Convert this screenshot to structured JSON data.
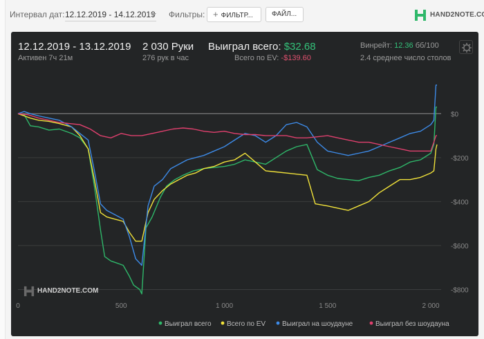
{
  "topbar": {
    "interval_label": "Интервал дат:",
    "date_range": "12.12.2019 - 14.12.2019",
    "filters_label": "Фильтры:",
    "filter_button": "ФИЛЬТР...",
    "file_button": "ФАЙЛ...",
    "logo_text": "HAND2NOTE.COM"
  },
  "summary": {
    "date_range": "12.12.2019 - 13.12.2019",
    "active": "Активен 7ч 21м",
    "hands": "2 030 Руки",
    "hands_per_hour": "276 рук в час",
    "won_label": "Выиграл всего:",
    "won_value": "$32.68",
    "ev_label": "Всего по EV:",
    "ev_value": "-$139.60",
    "winrate_label": "Винрейт:",
    "winrate_value": "12.36",
    "winrate_unit": "бб/100",
    "avg_tables": "2.4 среднее число столов"
  },
  "watermark": "HAND2NOTE.COM",
  "colors": {
    "won": "#2fb86a",
    "ev": "#f2e33a",
    "showdown": "#3d8be8",
    "non_showdown": "#e0406e"
  },
  "chart_data": {
    "type": "line",
    "x_ticks": [
      "0",
      "500",
      "1 000",
      "1 500",
      "2 000"
    ],
    "y_ticks": [
      "$0",
      "-$200",
      "-$400",
      "-$600",
      "-$800"
    ],
    "xlim": [
      0,
      2030
    ],
    "ylim": [
      -830,
      130
    ],
    "series": [
      {
        "name": "Выиграл всего",
        "color": "#2fb86a",
        "points": [
          [
            0,
            0
          ],
          [
            30,
            -5
          ],
          [
            60,
            -55
          ],
          [
            100,
            -60
          ],
          [
            150,
            -75
          ],
          [
            200,
            -70
          ],
          [
            260,
            -90
          ],
          [
            300,
            -110
          ],
          [
            340,
            -160
          ],
          [
            370,
            -330
          ],
          [
            400,
            -530
          ],
          [
            420,
            -650
          ],
          [
            450,
            -670
          ],
          [
            480,
            -680
          ],
          [
            510,
            -690
          ],
          [
            540,
            -740
          ],
          [
            560,
            -780
          ],
          [
            590,
            -800
          ],
          [
            600,
            -820
          ],
          [
            620,
            -520
          ],
          [
            650,
            -470
          ],
          [
            690,
            -380
          ],
          [
            720,
            -330
          ],
          [
            760,
            -300
          ],
          [
            800,
            -280
          ],
          [
            850,
            -260
          ],
          [
            900,
            -250
          ],
          [
            950,
            -245
          ],
          [
            1000,
            -240
          ],
          [
            1050,
            -230
          ],
          [
            1100,
            -210
          ],
          [
            1150,
            -220
          ],
          [
            1200,
            -230
          ],
          [
            1250,
            -200
          ],
          [
            1300,
            -170
          ],
          [
            1350,
            -150
          ],
          [
            1400,
            -140
          ],
          [
            1450,
            -255
          ],
          [
            1500,
            -280
          ],
          [
            1550,
            -295
          ],
          [
            1600,
            -300
          ],
          [
            1650,
            -305
          ],
          [
            1700,
            -290
          ],
          [
            1750,
            -280
          ],
          [
            1800,
            -260
          ],
          [
            1850,
            -245
          ],
          [
            1900,
            -220
          ],
          [
            1950,
            -210
          ],
          [
            2000,
            -180
          ],
          [
            2015,
            -140
          ],
          [
            2025,
            30
          ],
          [
            2030,
            30
          ]
        ]
      },
      {
        "name": "Всего по EV",
        "color": "#f2e33a",
        "points": [
          [
            0,
            0
          ],
          [
            30,
            -10
          ],
          [
            60,
            -20
          ],
          [
            100,
            -30
          ],
          [
            150,
            -35
          ],
          [
            200,
            -45
          ],
          [
            260,
            -60
          ],
          [
            300,
            -100
          ],
          [
            340,
            -160
          ],
          [
            370,
            -300
          ],
          [
            400,
            -450
          ],
          [
            430,
            -470
          ],
          [
            470,
            -480
          ],
          [
            510,
            -490
          ],
          [
            540,
            -540
          ],
          [
            570,
            -580
          ],
          [
            600,
            -580
          ],
          [
            630,
            -450
          ],
          [
            660,
            -390
          ],
          [
            700,
            -350
          ],
          [
            740,
            -320
          ],
          [
            780,
            -300
          ],
          [
            820,
            -280
          ],
          [
            860,
            -270
          ],
          [
            900,
            -250
          ],
          [
            950,
            -240
          ],
          [
            1000,
            -220
          ],
          [
            1050,
            -210
          ],
          [
            1100,
            -180
          ],
          [
            1150,
            -220
          ],
          [
            1200,
            -260
          ],
          [
            1250,
            -265
          ],
          [
            1300,
            -270
          ],
          [
            1350,
            -275
          ],
          [
            1400,
            -280
          ],
          [
            1440,
            -410
          ],
          [
            1500,
            -420
          ],
          [
            1550,
            -430
          ],
          [
            1600,
            -440
          ],
          [
            1650,
            -420
          ],
          [
            1700,
            -400
          ],
          [
            1750,
            -360
          ],
          [
            1800,
            -330
          ],
          [
            1850,
            -300
          ],
          [
            1900,
            -300
          ],
          [
            1950,
            -290
          ],
          [
            2000,
            -270
          ],
          [
            2015,
            -260
          ],
          [
            2025,
            -160
          ],
          [
            2030,
            -140
          ]
        ]
      },
      {
        "name": "Выиграл на шоудауне",
        "color": "#3d8be8",
        "points": [
          [
            0,
            0
          ],
          [
            30,
            10
          ],
          [
            60,
            0
          ],
          [
            100,
            -10
          ],
          [
            150,
            -20
          ],
          [
            200,
            -30
          ],
          [
            260,
            -60
          ],
          [
            300,
            -90
          ],
          [
            340,
            -120
          ],
          [
            370,
            -260
          ],
          [
            400,
            -410
          ],
          [
            430,
            -440
          ],
          [
            470,
            -460
          ],
          [
            510,
            -480
          ],
          [
            540,
            -560
          ],
          [
            570,
            -660
          ],
          [
            600,
            -690
          ],
          [
            630,
            -420
          ],
          [
            660,
            -330
          ],
          [
            700,
            -300
          ],
          [
            740,
            -250
          ],
          [
            780,
            -230
          ],
          [
            820,
            -210
          ],
          [
            860,
            -200
          ],
          [
            900,
            -190
          ],
          [
            950,
            -170
          ],
          [
            1000,
            -150
          ],
          [
            1050,
            -120
          ],
          [
            1100,
            -90
          ],
          [
            1150,
            -100
          ],
          [
            1200,
            -130
          ],
          [
            1250,
            -100
          ],
          [
            1300,
            -50
          ],
          [
            1350,
            -40
          ],
          [
            1400,
            -60
          ],
          [
            1450,
            -130
          ],
          [
            1500,
            -170
          ],
          [
            1550,
            -180
          ],
          [
            1600,
            -190
          ],
          [
            1650,
            -180
          ],
          [
            1700,
            -170
          ],
          [
            1750,
            -150
          ],
          [
            1800,
            -130
          ],
          [
            1850,
            -110
          ],
          [
            1900,
            -90
          ],
          [
            1950,
            -80
          ],
          [
            2000,
            -50
          ],
          [
            2015,
            -30
          ],
          [
            2025,
            130
          ],
          [
            2030,
            130
          ]
        ]
      },
      {
        "name": "Выиграл без шоудауна",
        "color": "#e0406e",
        "points": [
          [
            0,
            0
          ],
          [
            50,
            -5
          ],
          [
            100,
            -20
          ],
          [
            150,
            -30
          ],
          [
            200,
            -40
          ],
          [
            250,
            -45
          ],
          [
            300,
            -50
          ],
          [
            350,
            -70
          ],
          [
            400,
            -100
          ],
          [
            450,
            -110
          ],
          [
            500,
            -90
          ],
          [
            550,
            -100
          ],
          [
            600,
            -100
          ],
          [
            650,
            -90
          ],
          [
            700,
            -80
          ],
          [
            750,
            -70
          ],
          [
            800,
            -65
          ],
          [
            850,
            -70
          ],
          [
            900,
            -80
          ],
          [
            950,
            -85
          ],
          [
            1000,
            -80
          ],
          [
            1050,
            -90
          ],
          [
            1100,
            -95
          ],
          [
            1150,
            -95
          ],
          [
            1200,
            -100
          ],
          [
            1250,
            -100
          ],
          [
            1300,
            -100
          ],
          [
            1350,
            -110
          ],
          [
            1400,
            -110
          ],
          [
            1450,
            -105
          ],
          [
            1500,
            -100
          ],
          [
            1550,
            -110
          ],
          [
            1600,
            -120
          ],
          [
            1650,
            -130
          ],
          [
            1700,
            -130
          ],
          [
            1750,
            -140
          ],
          [
            1800,
            -150
          ],
          [
            1850,
            -160
          ],
          [
            1900,
            -170
          ],
          [
            1950,
            -170
          ],
          [
            2000,
            -170
          ],
          [
            2015,
            -130
          ],
          [
            2025,
            -100
          ],
          [
            2030,
            -100
          ]
        ]
      }
    ]
  }
}
